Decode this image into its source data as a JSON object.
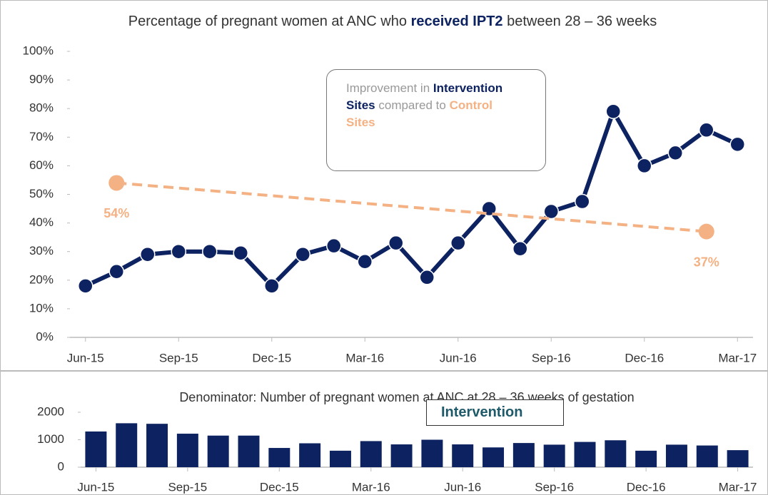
{
  "chart_data": [
    {
      "type": "line",
      "title": [
        "Percentage of pregnant women at ANC who ",
        "received IPT2",
        " between 28 – 36 weeks"
      ],
      "annotation": [
        "Improvement in ",
        "Intervention Sites",
        " compared to ",
        "Control Sites"
      ],
      "categories": [
        "Jun-15",
        null,
        null,
        "Sep-15",
        null,
        null,
        "Dec-15",
        null,
        null,
        "Mar-16",
        null,
        null,
        "Jun-16",
        null,
        null,
        "Sep-16",
        null,
        null,
        "Dec-16",
        null,
        null,
        "Mar-17"
      ],
      "ylim": [
        0,
        100
      ],
      "yticks": [
        {
          "value": 0,
          "label": "0%"
        },
        {
          "value": 10,
          "label": "10%"
        },
        {
          "value": 20,
          "label": "20%"
        },
        {
          "value": 30,
          "label": "30%"
        },
        {
          "value": 40,
          "label": "40%"
        },
        {
          "value": 50,
          "label": "50%"
        },
        {
          "value": 60,
          "label": "60%"
        },
        {
          "value": 70,
          "label": "70%"
        },
        {
          "value": 80,
          "label": "80%"
        },
        {
          "value": 90,
          "label": "90%"
        },
        {
          "value": 100,
          "label": "100%"
        }
      ],
      "series": [
        {
          "color": "#0d2260",
          "values": [
            18,
            23,
            29,
            30,
            30,
            29.5,
            18,
            29,
            32,
            26.5,
            33,
            21,
            33,
            45,
            31,
            44,
            47.5,
            79,
            60,
            64.5,
            72.5,
            67.5
          ]
        },
        {
          "color": "#f4b183",
          "dashed": true,
          "connect_gaps": true,
          "values": [
            null,
            54,
            null,
            null,
            null,
            null,
            null,
            null,
            null,
            null,
            null,
            null,
            null,
            null,
            null,
            null,
            null,
            null,
            null,
            null,
            37,
            null
          ],
          "value_labels": [
            null,
            "54%",
            null,
            null,
            null,
            null,
            null,
            null,
            null,
            null,
            null,
            null,
            null,
            null,
            null,
            null,
            null,
            null,
            null,
            null,
            "37%",
            null
          ]
        }
      ]
    },
    {
      "type": "bar",
      "title": [
        "Denominator: Number of pregnant women at ANC at 28 – 36 weeks of gestation"
      ],
      "overlay_label": "Intervention",
      "categories": [
        "Jun-15",
        null,
        null,
        "Sep-15",
        null,
        null,
        "Dec-15",
        null,
        null,
        "Mar-16",
        null,
        null,
        "Jun-16",
        null,
        null,
        "Sep-16",
        null,
        null,
        "Dec-16",
        null,
        null,
        "Mar-17"
      ],
      "values": [
        1300,
        1600,
        1580,
        1220,
        1150,
        1150,
        700,
        870,
        600,
        950,
        830,
        1000,
        830,
        720,
        880,
        820,
        920,
        980,
        600,
        820,
        790,
        620
      ],
      "color": "#0d2260",
      "ylim": [
        0,
        2000
      ],
      "yticks": [
        0,
        1000,
        2000
      ]
    }
  ]
}
